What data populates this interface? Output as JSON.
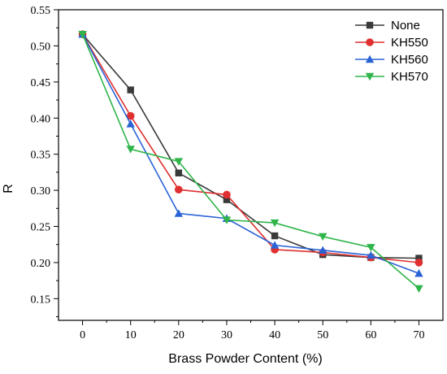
{
  "chart_data": {
    "type": "line",
    "xlabel": "Brass Powder Content (%)",
    "ylabel": "R",
    "xlim": [
      -5,
      75
    ],
    "ylim": [
      0.12,
      0.55
    ],
    "x_ticks": [
      0,
      10,
      20,
      30,
      40,
      50,
      60,
      70
    ],
    "y_ticks": [
      0.15,
      0.2,
      0.25,
      0.3,
      0.35,
      0.4,
      0.45,
      0.5,
      0.55
    ],
    "x_tick_labels": [
      "0",
      "10",
      "20",
      "30",
      "40",
      "50",
      "60",
      "70"
    ],
    "y_tick_labels": [
      "0.15",
      "0.20",
      "0.25",
      "0.30",
      "0.35",
      "0.40",
      "0.45",
      "0.50",
      "0.55"
    ],
    "grid": false,
    "legend_position": "top-right",
    "x": [
      0,
      10,
      20,
      30,
      40,
      50,
      60,
      70
    ],
    "series": [
      {
        "name": "None",
        "color": "#3a3a3a",
        "marker": "square",
        "values": [
          0.516,
          0.439,
          0.324,
          0.287,
          0.237,
          0.211,
          0.207,
          0.206
        ]
      },
      {
        "name": "KH550",
        "color": "#e03030",
        "marker": "circle",
        "values": [
          0.516,
          0.403,
          0.301,
          0.294,
          0.218,
          0.214,
          0.207,
          0.2
        ]
      },
      {
        "name": "KH560",
        "color": "#2a63d6",
        "marker": "triangle-up",
        "values": [
          0.516,
          0.392,
          0.268,
          0.261,
          0.224,
          0.217,
          0.21,
          0.185
        ]
      },
      {
        "name": "KH570",
        "color": "#2fb54a",
        "marker": "triangle-down",
        "values": [
          0.516,
          0.357,
          0.34,
          0.259,
          0.255,
          0.236,
          0.221,
          0.164
        ]
      }
    ]
  }
}
